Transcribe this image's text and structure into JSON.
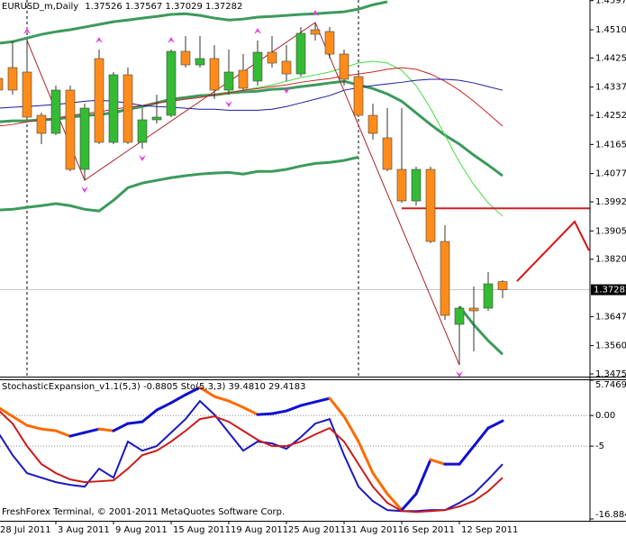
{
  "chart_data": [
    {
      "type": "candlestick",
      "title": "EURUSD_m,Daily",
      "categories": [
        "28 Jul 2011",
        null,
        null,
        null,
        "3 Aug 2011",
        null,
        null,
        null,
        "9 Aug 2011",
        null,
        null,
        null,
        "15 Aug 2011",
        null,
        null,
        null,
        "19 Aug 2011",
        null,
        null,
        null,
        "25 Aug 2011",
        null,
        null,
        null,
        "31 Aug 2011",
        null,
        null,
        null,
        "6 Sep 2011",
        null,
        null,
        null,
        "12 Sep 2011",
        null,
        null,
        null
      ],
      "open": [
        1.43637,
        1.43962,
        1.43827,
        1.42526,
        1.41984,
        1.43285,
        1.409,
        1.44233,
        1.41714,
        1.43745,
        1.41714,
        1.42391,
        1.42526,
        1.4445,
        1.44043,
        1.44233,
        1.43285,
        1.43881,
        1.43556,
        1.44423,
        1.44152,
        1.43772,
        1.451,
        1.45046,
        1.44368,
        1.43691,
        1.42526,
        1.41849,
        1.409,
        1.39952,
        1.409,
        1.38733,
        1.3624,
        1.36728,
        1.36728,
        1.37526
      ],
      "high": [
        1.43827,
        1.44775,
        1.44775,
        1.42607,
        1.4342,
        1.4342,
        1.42878,
        1.44504,
        1.43827,
        1.43962,
        1.42743,
        1.4315,
        1.44504,
        1.4491,
        1.4491,
        1.44639,
        1.44504,
        1.44368,
        1.44775,
        1.4491,
        1.44639,
        1.45181,
        1.45317,
        1.45181,
        1.44504,
        1.43827,
        1.42878,
        1.42743,
        1.42743,
        1.40982,
        1.40982,
        1.39221,
        1.36782,
        1.37378,
        1.37812,
        1.37567
      ],
      "low": [
        1.4315,
        1.4315,
        1.42418,
        1.41659,
        1.4193,
        1.40846,
        1.40575,
        1.41659,
        1.41659,
        1.41659,
        1.41524,
        1.42282,
        1.42472,
        1.43962,
        1.43962,
        1.43014,
        1.4315,
        1.43285,
        1.4342,
        1.43962,
        1.43556,
        1.43691,
        1.44775,
        1.44233,
        1.4342,
        1.42472,
        1.41795,
        1.40846,
        1.39898,
        1.39817,
        1.38679,
        1.36376,
        1.35021,
        1.35427,
        1.36647,
        1.37029
      ],
      "close": [
        1.43285,
        1.43285,
        1.42472,
        1.41984,
        1.43285,
        1.409,
        1.42743,
        1.41714,
        1.43745,
        1.41714,
        1.42391,
        1.42472,
        1.4445,
        1.44043,
        1.44233,
        1.43285,
        1.43827,
        1.43339,
        1.44423,
        1.44097,
        1.43772,
        1.44992,
        1.44964,
        1.44368,
        1.4361,
        1.42526,
        1.41984,
        1.409,
        1.39952,
        1.409,
        1.38733,
        1.36511,
        1.36728,
        1.36647,
        1.3746,
        1.37282
      ],
      "up_color": "#33bb33",
      "down_color": "#ff8c1a",
      "ylim": [
        1.34669,
        1.45994
      ],
      "yticks": [
        {
          "value": 1.45975,
          "label": "1.45975"
        },
        {
          "value": 1.451,
          "label": "1.45100"
        },
        {
          "value": 1.4425,
          "label": "1.44250"
        },
        {
          "value": 1.43375,
          "label": "1.43375"
        },
        {
          "value": 1.42525,
          "label": "1.42525"
        },
        {
          "value": 1.4165,
          "label": "1.41650"
        },
        {
          "value": 1.40775,
          "label": "1.40775"
        },
        {
          "value": 1.39925,
          "label": "1.39925"
        },
        {
          "value": 1.3905,
          "label": "1.39050"
        },
        {
          "value": 1.382,
          "label": "1.38200"
        },
        {
          "value": 1.36475,
          "label": "1.36475"
        },
        {
          "value": 1.356,
          "label": "1.35600"
        },
        {
          "value": 1.3475,
          "label": "1.34750"
        }
      ],
      "series": [
        {
          "color": "#3c9a5c",
          "width": 3,
          "values": [
            1.4469,
            1.4474,
            1.4485,
            1.4496,
            1.4504,
            1.451,
            1.4518,
            1.4526,
            1.4534,
            1.4539,
            1.4545,
            1.455,
            1.4556,
            1.4558,
            1.4553,
            1.4545,
            1.4539,
            1.4542,
            1.4548,
            1.455,
            1.4553,
            1.4556,
            1.4558,
            1.4561,
            1.4564,
            1.4572,
            1.4585,
            1.4594,
            null,
            null,
            null,
            null,
            null,
            null,
            null,
            null
          ]
        },
        {
          "color": "#3c9a5c",
          "width": 3,
          "values": [
            1.3968,
            1.397,
            1.3976,
            1.3981,
            1.3987,
            1.3981,
            1.397,
            1.3965,
            1.3997,
            1.4035,
            1.4049,
            1.4057,
            1.4065,
            1.4071,
            1.4076,
            1.4079,
            1.4081,
            1.4076,
            1.4084,
            1.4084,
            1.409,
            1.41,
            1.4108,
            1.4111,
            1.4117,
            1.4127,
            null,
            null,
            null,
            null,
            null,
            null,
            1.3678,
            1.3623,
            1.3575,
            1.3534
          ]
        },
        {
          "color": "#3c9a5c",
          "width": 3,
          "values": [
            1.4233,
            1.4236,
            1.4236,
            1.4239,
            1.4241,
            1.4247,
            1.4252,
            1.4255,
            1.426,
            1.4271,
            1.4279,
            1.429,
            1.4301,
            1.4306,
            1.4312,
            1.4314,
            1.432,
            1.4323,
            1.4325,
            1.4331,
            1.4333,
            1.4339,
            1.4344,
            1.435,
            1.4355,
            1.4344,
            1.4333,
            1.4317,
            1.4295,
            1.426,
            1.4225,
            1.4193,
            1.4166,
            1.4133,
            1.4103,
            1.4071
          ]
        },
        {
          "color": "#44dd44",
          "width": 1,
          "values": [
            null,
            null,
            null,
            null,
            null,
            null,
            null,
            null,
            null,
            null,
            null,
            null,
            null,
            null,
            null,
            1.4314,
            1.4323,
            1.4328,
            1.4336,
            1.4344,
            1.4355,
            1.4366,
            1.4374,
            1.4383,
            1.4396,
            1.441,
            1.4415,
            1.441,
            1.4388,
            1.4342,
            1.4274,
            1.4193,
            1.4112,
            1.4044,
            1.3989,
            1.3949
          ]
        },
        {
          "color": "#cc2222",
          "width": 1,
          "values": [
            1.422,
            1.4225,
            1.4233,
            1.4239,
            1.4244,
            1.4252,
            1.4258,
            1.4263,
            1.4271,
            1.4277,
            1.4282,
            1.429,
            1.4295,
            1.4301,
            1.4306,
            1.4314,
            1.432,
            1.4328,
            1.4333,
            1.4339,
            1.4344,
            1.4352,
            1.4358,
            1.4363,
            1.4371,
            1.4377,
            1.4383,
            1.4391,
            1.4396,
            1.4391,
            1.4377,
            1.4355,
            1.4328,
            1.4295,
            1.4258,
            1.422
          ]
        },
        {
          "color": "#1a1aa0",
          "width": 1,
          "values": [
            1.4274,
            1.4277,
            1.4279,
            1.4282,
            1.4285,
            1.429,
            1.4295,
            1.4298,
            1.4295,
            1.429,
            1.4282,
            1.4279,
            1.4277,
            1.4274,
            1.4271,
            1.4271,
            1.4268,
            1.4268,
            1.4268,
            1.4271,
            1.4279,
            1.429,
            1.4301,
            1.4312,
            1.4328,
            1.4336,
            1.4342,
            1.4347,
            1.4352,
            1.4358,
            1.4361,
            1.4361,
            1.4358,
            1.435,
            1.4339,
            1.4328
          ]
        }
      ],
      "zigzag": {
        "color": "#aa2222",
        "x": [
          2,
          6,
          22,
          32
        ],
        "values": [
          1.44775,
          1.40575,
          1.45317,
          1.35021
        ]
      },
      "level": {
        "color": "#cc2222",
        "value": 1.3973,
        "from": 28
      },
      "forecast": {
        "color": "#dd1111",
        "x": [
          36,
          40,
          41
        ],
        "values": [
          1.3754,
          1.3933,
          1.3846
        ]
      },
      "fractal_color": "#e040e0",
      "fractals_up": [
        2,
        7,
        12,
        18,
        22
      ],
      "fractals_down": [
        6,
        10,
        16,
        20,
        32
      ],
      "separators": [
        2,
        25
      ]
    },
    {
      "type": "line",
      "title": "StochasticExpansion_v1.1(5,3) -0.8805  Sto(5,3,3) 39.4810 29.4183",
      "ylim": [
        -16.8846,
        5.7469
      ],
      "yticks": [
        5.7469,
        {
          "value": 0,
          "label": "0.00"
        },
        -5,
        -16.8846
      ],
      "grid": true,
      "series": [
        {
          "up_color": "#1010d0",
          "down_color": "#ff6a00",
          "width": 3,
          "values": [
            1.32,
            -0.15,
            -1.62,
            -2.21,
            -2.5,
            -3.38,
            -2.79,
            -2.21,
            -2.5,
            -1.32,
            -1.03,
            0.88,
            2.06,
            3.38,
            4.56,
            3.09,
            2.35,
            1.32,
            0.15,
            0.29,
            0.74,
            1.62,
            2.21,
            2.79,
            -0.15,
            -4.26,
            -9.41,
            -12.79,
            -15.44,
            -12.79,
            -7.21,
            -7.94,
            -7.94,
            -5,
            -2.06,
            -0.8805
          ]
        },
        {
          "color": "#1a1ac0",
          "width": 2,
          "values": [
            -2.79,
            -6.47,
            -9.41,
            -10.15,
            -10.88,
            -11.32,
            -11.62,
            -8.68,
            -10.15,
            -4.26,
            -5.74,
            -5,
            -2.79,
            -0.59,
            2.35,
            0.15,
            -2.79,
            -5.74,
            -4.26,
            -4.56,
            -5.44,
            -3.53,
            -1.32,
            -0.59,
            -6.47,
            -11.62,
            -13.97,
            -15.44,
            -15.59,
            -15.59,
            -15.44,
            -15.44,
            -14.26,
            -12.79,
            -10.44,
            -7.94
          ]
        },
        {
          "color": "#cc1a1a",
          "width": 2,
          "values": [
            0.88,
            -1.32,
            -5,
            -7.94,
            -9.41,
            -10.44,
            -10.88,
            -10.74,
            -10.59,
            -8.68,
            -6.47,
            -5.74,
            -4.26,
            -2.5,
            -0.59,
            -0.15,
            -1.03,
            -2.5,
            -3.97,
            -5,
            -5,
            -4.26,
            -3.09,
            -2.06,
            -4.26,
            -7.94,
            -11.62,
            -14.26,
            -15.59,
            -15.74,
            -15.59,
            -15.44,
            -14.85,
            -13.97,
            -12.35,
            -10.15
          ]
        }
      ],
      "footer": "FreshForex Terminal, © 2001-2011 MetaQuotes Software Corp."
    }
  ]
}
